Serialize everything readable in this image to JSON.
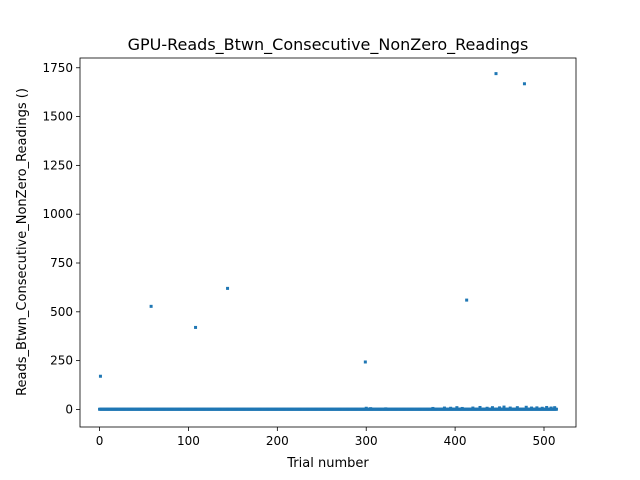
{
  "chart_data": {
    "type": "scatter",
    "title": "GPU-Reads_Btwn_Consecutive_NonZero_Readings",
    "xlabel": "Trial number",
    "ylabel": "Reads_Btwn_Consecutive_NonZero_Readings ()",
    "xlim": [
      -22,
      536
    ],
    "ylim": [
      -90,
      1800
    ],
    "x_ticks": [
      0,
      100,
      200,
      300,
      400,
      500
    ],
    "x_tick_labels": [
      "0",
      "100",
      "200",
      "300",
      "400",
      "500"
    ],
    "y_ticks": [
      0,
      250,
      500,
      750,
      1000,
      1250,
      1500,
      1750
    ],
    "y_tick_labels": [
      "0",
      "250",
      "500",
      "750",
      "1000",
      "1250",
      "1500",
      "1750"
    ],
    "grid": false,
    "legend": "none",
    "marker": "square",
    "color": "#1f77b4",
    "series": [
      {
        "x_range": [
          0,
          514
        ],
        "baseline_value": 1,
        "points": [
          {
            "x": 1,
            "y": 170
          },
          {
            "x": 58,
            "y": 528
          },
          {
            "x": 108,
            "y": 420
          },
          {
            "x": 144,
            "y": 620
          },
          {
            "x": 299,
            "y": 243
          },
          {
            "x": 300,
            "y": 6
          },
          {
            "x": 305,
            "y": 4
          },
          {
            "x": 322,
            "y": 3
          },
          {
            "x": 375,
            "y": 5
          },
          {
            "x": 388,
            "y": 7
          },
          {
            "x": 395,
            "y": 6
          },
          {
            "x": 402,
            "y": 9
          },
          {
            "x": 408,
            "y": 5
          },
          {
            "x": 413,
            "y": 560
          },
          {
            "x": 420,
            "y": 7
          },
          {
            "x": 428,
            "y": 10
          },
          {
            "x": 436,
            "y": 6
          },
          {
            "x": 442,
            "y": 9
          },
          {
            "x": 446,
            "y": 1720
          },
          {
            "x": 450,
            "y": 8
          },
          {
            "x": 455,
            "y": 12
          },
          {
            "x": 462,
            "y": 7
          },
          {
            "x": 470,
            "y": 9
          },
          {
            "x": 478,
            "y": 1668
          },
          {
            "x": 480,
            "y": 11
          },
          {
            "x": 486,
            "y": 7
          },
          {
            "x": 492,
            "y": 8
          },
          {
            "x": 498,
            "y": 6
          },
          {
            "x": 503,
            "y": 10
          },
          {
            "x": 508,
            "y": 7
          },
          {
            "x": 512,
            "y": 9
          }
        ]
      }
    ]
  }
}
